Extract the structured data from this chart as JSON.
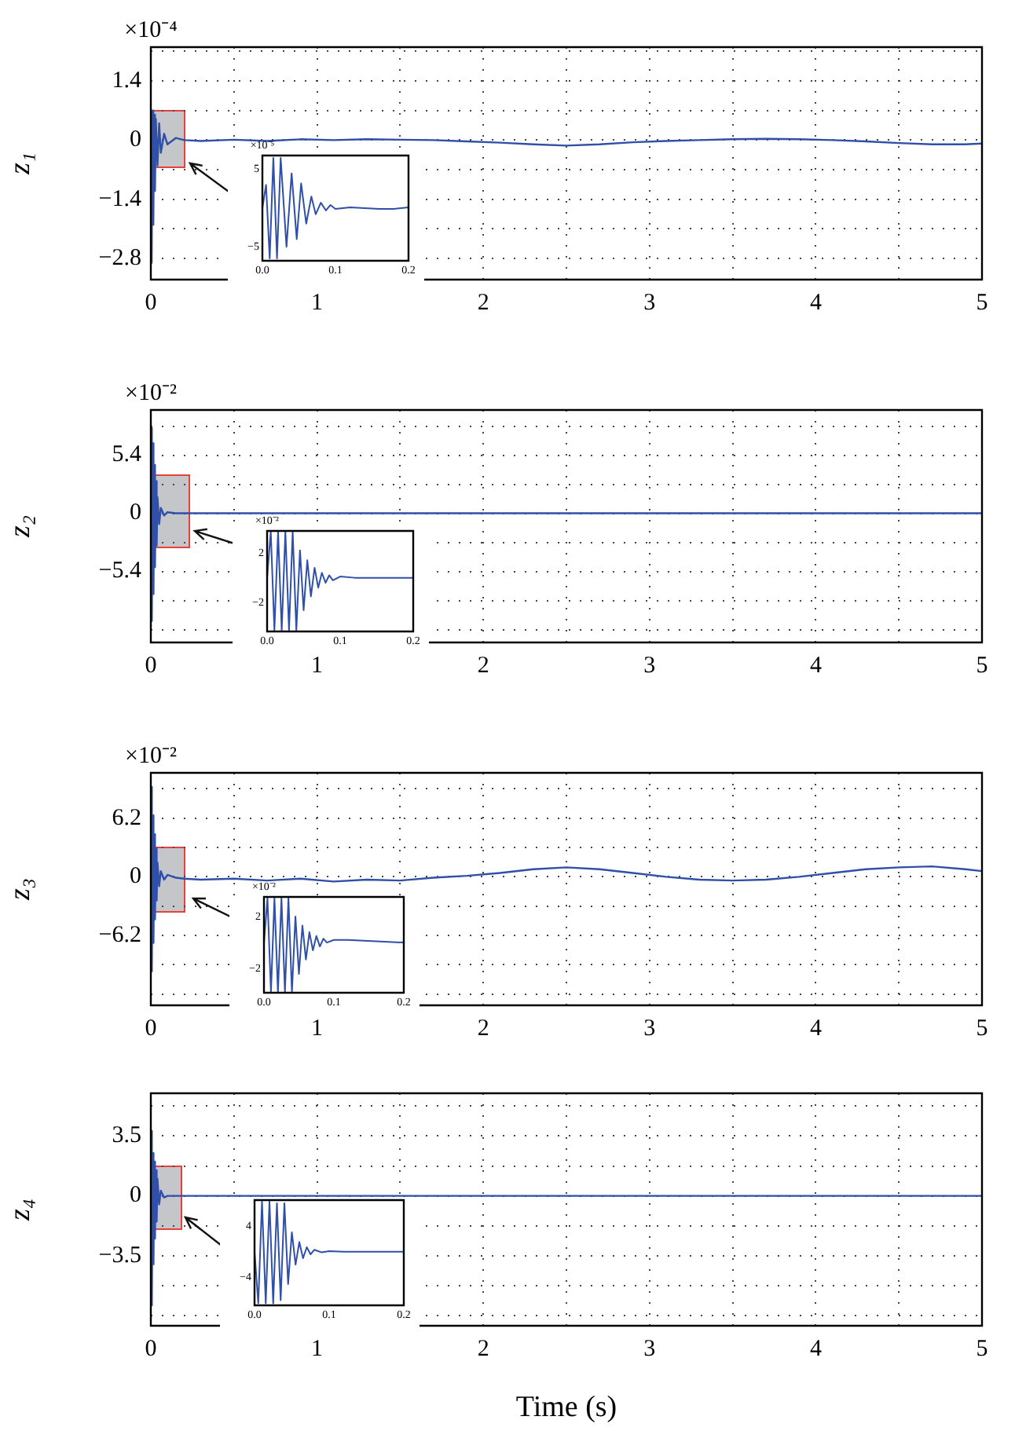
{
  "chart_data": [
    {
      "type": "line",
      "ylabel": "z₁",
      "annotations": [
        "×10⁻⁴"
      ],
      "grid": true,
      "x": [
        0,
        0.005,
        0.01,
        0.015,
        0.02,
        0.025,
        0.03,
        0.04,
        0.05,
        0.06,
        0.08,
        0.1,
        0.15,
        0.2,
        0.3,
        0.5,
        0.7,
        0.9,
        1.1,
        1.3,
        1.5,
        1.7,
        1.9,
        2.1,
        2.3,
        2.5,
        2.7,
        2.9,
        3.1,
        3.3,
        3.5,
        3.7,
        3.9,
        4.1,
        4.3,
        4.5,
        4.7,
        4.9,
        5
      ],
      "series": [
        {
          "color": "#2f4fa8",
          "values": [
            0,
            -2.9,
            0.7,
            -2.0,
            0.6,
            -1.2,
            0.5,
            -0.6,
            0.4,
            -0.3,
            0.15,
            -0.1,
            0.05,
            0,
            -0.02,
            0.01,
            -0.02,
            0.02,
            0,
            0.02,
            0.01,
            0,
            -0.03,
            -0.06,
            -0.1,
            -0.13,
            -0.1,
            -0.05,
            -0.02,
            0,
            0.02,
            0.03,
            0.02,
            0,
            -0.03,
            -0.07,
            -0.1,
            -0.1,
            -0.08
          ]
        }
      ],
      "xlim": [
        0,
        5
      ],
      "xticks": [
        0,
        {
          "value": 0.5,
          "label": null
        },
        1,
        {
          "value": 1.5,
          "label": null
        },
        2,
        {
          "value": 2.5,
          "label": null
        },
        3,
        {
          "value": 3.5,
          "label": null
        },
        4,
        {
          "value": 4.5,
          "label": null
        },
        5
      ],
      "ylim": [
        -3.3,
        2.2
      ],
      "yticks": [
        {
          "value": 2.1,
          "label": null
        },
        1.4,
        {
          "value": 0.7,
          "label": null
        },
        0,
        {
          "value": -0.7,
          "label": null
        },
        {
          "value": -1.4,
          "label": "−1.4"
        },
        {
          "value": -2.1,
          "label": null
        },
        {
          "value": -2.8,
          "label": "−2.8"
        }
      ]
    },
    {
      "type": "line",
      "annotations": [
        "×10⁻⁵"
      ],
      "x": [
        0,
        0.005,
        0.01,
        0.015,
        0.02,
        0.025,
        0.033,
        0.04,
        0.047,
        0.053,
        0.06,
        0.067,
        0.073,
        0.08,
        0.087,
        0.093,
        0.1,
        0.12,
        0.14,
        0.16,
        0.18,
        0.2
      ],
      "series": [
        {
          "color": "#2f4fa8",
          "values": [
            0,
            3,
            -6.5,
            6.5,
            -6.5,
            6.5,
            -5,
            4.5,
            -4,
            3.2,
            -2,
            1.5,
            -0.8,
            0.7,
            -0.3,
            0.4,
            -0.1,
            0.1,
            0,
            -0.1,
            -0.1,
            0.1
          ]
        }
      ],
      "xlim": [
        0,
        0.2
      ],
      "xticks": [
        {
          "value": 0,
          "label": "0.0"
        },
        0.1,
        0.2
      ],
      "ylim": [
        -6.8,
        6.8
      ],
      "yticks": [
        5,
        {
          "value": -5,
          "label": "−5"
        }
      ]
    },
    {
      "type": "line",
      "ylabel": "z₂",
      "annotations": [
        "×10⁻²"
      ],
      "grid": true,
      "x": [
        0,
        0.004,
        0.008,
        0.012,
        0.016,
        0.02,
        0.025,
        0.03,
        0.035,
        0.04,
        0.05,
        0.06,
        0.08,
        0.1,
        0.15,
        0.2,
        1,
        2,
        3,
        4,
        5
      ],
      "series": [
        {
          "color": "#2f4fa8",
          "values": [
            0,
            7.9,
            -10,
            6.5,
            -7.5,
            4.5,
            -5,
            3,
            -3,
            1.5,
            -1,
            0.5,
            -0.2,
            0.1,
            0,
            0,
            0,
            0,
            0,
            0,
            0
          ]
        }
      ],
      "xlim": [
        0,
        5
      ],
      "xticks": [
        0,
        {
          "value": 0.5,
          "label": null
        },
        1,
        {
          "value": 1.5,
          "label": null
        },
        2,
        {
          "value": 2.5,
          "label": null
        },
        3,
        {
          "value": 3.5,
          "label": null
        },
        4,
        {
          "value": 4.5,
          "label": null
        },
        5
      ],
      "ylim": [
        -12,
        9.6
      ],
      "yticks": [
        {
          "value": 8.1,
          "label": null
        },
        5.4,
        {
          "value": 2.7,
          "label": null
        },
        0,
        {
          "value": -2.7,
          "label": null
        },
        {
          "value": -5.4,
          "label": "−5.4"
        },
        {
          "value": -8.1,
          "label": null
        },
        {
          "value": -10.8,
          "label": null
        }
      ]
    },
    {
      "type": "line",
      "annotations": [
        "×10⁻²"
      ],
      "x": [
        0,
        0.005,
        0.01,
        0.015,
        0.02,
        0.025,
        0.03,
        0.035,
        0.04,
        0.045,
        0.05,
        0.055,
        0.06,
        0.065,
        0.07,
        0.075,
        0.08,
        0.085,
        0.09,
        0.1,
        0.12,
        0.2
      ],
      "series": [
        {
          "color": "#2f4fa8",
          "values": [
            0,
            3.7,
            -4.2,
            3.7,
            -4.2,
            3.7,
            -4.2,
            3.7,
            -4.2,
            2.2,
            -2.6,
            1.4,
            -1.5,
            0.8,
            -0.8,
            0.4,
            -0.4,
            0.2,
            -0.2,
            0.1,
            0,
            0
          ]
        }
      ],
      "xlim": [
        0,
        0.2
      ],
      "xticks": [
        {
          "value": 0,
          "label": "0.0"
        },
        0.1,
        0.2
      ],
      "ylim": [
        -4.3,
        3.75
      ],
      "yticks": [
        2,
        {
          "value": -2,
          "label": "−2"
        }
      ]
    },
    {
      "type": "line",
      "ylabel": "z₃",
      "annotations": [
        "×10⁻²"
      ],
      "grid": true,
      "x": [
        0,
        0.004,
        0.008,
        0.012,
        0.016,
        0.02,
        0.025,
        0.03,
        0.035,
        0.04,
        0.05,
        0.06,
        0.08,
        0.1,
        0.15,
        0.2,
        0.3,
        0.5,
        0.7,
        0.9,
        1.1,
        1.3,
        1.5,
        1.7,
        1.9,
        2.1,
        2.3,
        2.5,
        2.7,
        2.9,
        3.1,
        3.3,
        3.5,
        3.7,
        3.9,
        4.1,
        4.3,
        4.5,
        4.7,
        4.9,
        5
      ],
      "series": [
        {
          "color": "#2f4fa8",
          "values": [
            0,
            9.5,
            -10,
            6.5,
            -7,
            4.5,
            -4.5,
            3,
            -2.5,
            1.5,
            -1,
            0.6,
            -0.3,
            0.2,
            -0.1,
            -0.2,
            -0.3,
            -0.2,
            -0.4,
            -0.2,
            -0.5,
            -0.3,
            -0.4,
            -0.1,
            0.1,
            0.4,
            0.8,
            1.0,
            0.8,
            0.4,
            0,
            -0.3,
            -0.4,
            -0.3,
            0,
            0.4,
            0.8,
            1.0,
            1.1,
            0.8,
            0.6
          ]
        }
      ],
      "xlim": [
        0,
        5
      ],
      "xticks": [
        0,
        {
          "value": 0.5,
          "label": null
        },
        1,
        {
          "value": 1.5,
          "label": null
        },
        2,
        {
          "value": 2.5,
          "label": null
        },
        3,
        {
          "value": 3.5,
          "label": null
        },
        4,
        {
          "value": 4.5,
          "label": null
        },
        5
      ],
      "ylim": [
        -13.6,
        11
      ],
      "yticks": [
        {
          "value": 9.3,
          "label": null
        },
        6.2,
        {
          "value": 3.1,
          "label": null
        },
        0,
        {
          "value": -3.1,
          "label": null
        },
        {
          "value": -6.2,
          "label": "−6.2"
        },
        {
          "value": -9.3,
          "label": null
        },
        {
          "value": -12.4,
          "label": null
        }
      ]
    },
    {
      "type": "line",
      "annotations": [
        "×10⁻²"
      ],
      "x": [
        0,
        0.005,
        0.01,
        0.015,
        0.02,
        0.025,
        0.03,
        0.035,
        0.04,
        0.045,
        0.05,
        0.055,
        0.06,
        0.065,
        0.07,
        0.075,
        0.08,
        0.085,
        0.09,
        0.1,
        0.12,
        0.2
      ],
      "series": [
        {
          "color": "#2f4fa8",
          "values": [
            0,
            3.4,
            -3.8,
            3.4,
            -3.8,
            3.4,
            -3.8,
            3.4,
            -3.8,
            2,
            -2.4,
            1.3,
            -1.3,
            0.8,
            -0.6,
            0.5,
            -0.3,
            0.3,
            0,
            0.2,
            0.2,
            0
          ]
        }
      ],
      "xlim": [
        0,
        0.2
      ],
      "xticks": [
        {
          "value": 0,
          "label": "0.0"
        },
        0.1,
        0.2
      ],
      "ylim": [
        -3.85,
        3.5
      ],
      "yticks": [
        2,
        {
          "value": -2,
          "label": "−2"
        }
      ]
    },
    {
      "type": "line",
      "ylabel": "z₄",
      "xlabel": "Time (s)",
      "grid": true,
      "x": [
        0,
        0.004,
        0.008,
        0.012,
        0.016,
        0.02,
        0.025,
        0.03,
        0.035,
        0.04,
        0.05,
        0.06,
        0.08,
        0.1,
        0.15,
        1,
        2,
        3,
        4,
        5
      ],
      "series": [
        {
          "color": "#2f4fa8",
          "values": [
            0,
            3.8,
            -6.4,
            2.5,
            -4,
            2,
            -2.5,
            1.5,
            -1.5,
            1,
            -0.5,
            0.3,
            -0.1,
            0,
            0,
            0,
            0,
            0,
            0,
            0
          ]
        }
      ],
      "xlim": [
        0,
        5
      ],
      "xticks": [
        0,
        {
          "value": 0.5,
          "label": null
        },
        1,
        {
          "value": 1.5,
          "label": null
        },
        2,
        {
          "value": 2.5,
          "label": null
        },
        3,
        {
          "value": 3.5,
          "label": null
        },
        4,
        {
          "value": 4.5,
          "label": null
        },
        5
      ],
      "ylim": [
        -7.6,
        6
      ],
      "yticks": [
        {
          "value": 5.25,
          "label": null
        },
        3.5,
        {
          "value": 1.75,
          "label": null
        },
        0,
        {
          "value": -1.75,
          "label": null
        },
        {
          "value": -3.5,
          "label": "−3.5"
        },
        {
          "value": -5.25,
          "label": null
        },
        {
          "value": -7,
          "label": null
        }
      ]
    },
    {
      "type": "line",
      "x": [
        0,
        0.005,
        0.01,
        0.015,
        0.02,
        0.025,
        0.03,
        0.035,
        0.04,
        0.045,
        0.05,
        0.055,
        0.06,
        0.065,
        0.07,
        0.075,
        0.08,
        0.09,
        0.1,
        0.12,
        0.2
      ],
      "series": [
        {
          "color": "#2f4fa8",
          "values": [
            0,
            -8,
            7.8,
            -8,
            7.8,
            -8,
            7.5,
            -7.5,
            7.5,
            -5,
            3,
            -2,
            1.5,
            -1,
            0.7,
            -0.4,
            0.3,
            -0.1,
            0.1,
            0,
            0
          ]
        }
      ],
      "xlim": [
        0,
        0.2
      ],
      "xticks": [
        {
          "value": 0,
          "label": "0.0"
        },
        0.1,
        0.2
      ],
      "ylim": [
        -8.3,
        8
      ],
      "yticks": [
        4,
        {
          "value": -4,
          "label": "−4"
        }
      ]
    }
  ]
}
